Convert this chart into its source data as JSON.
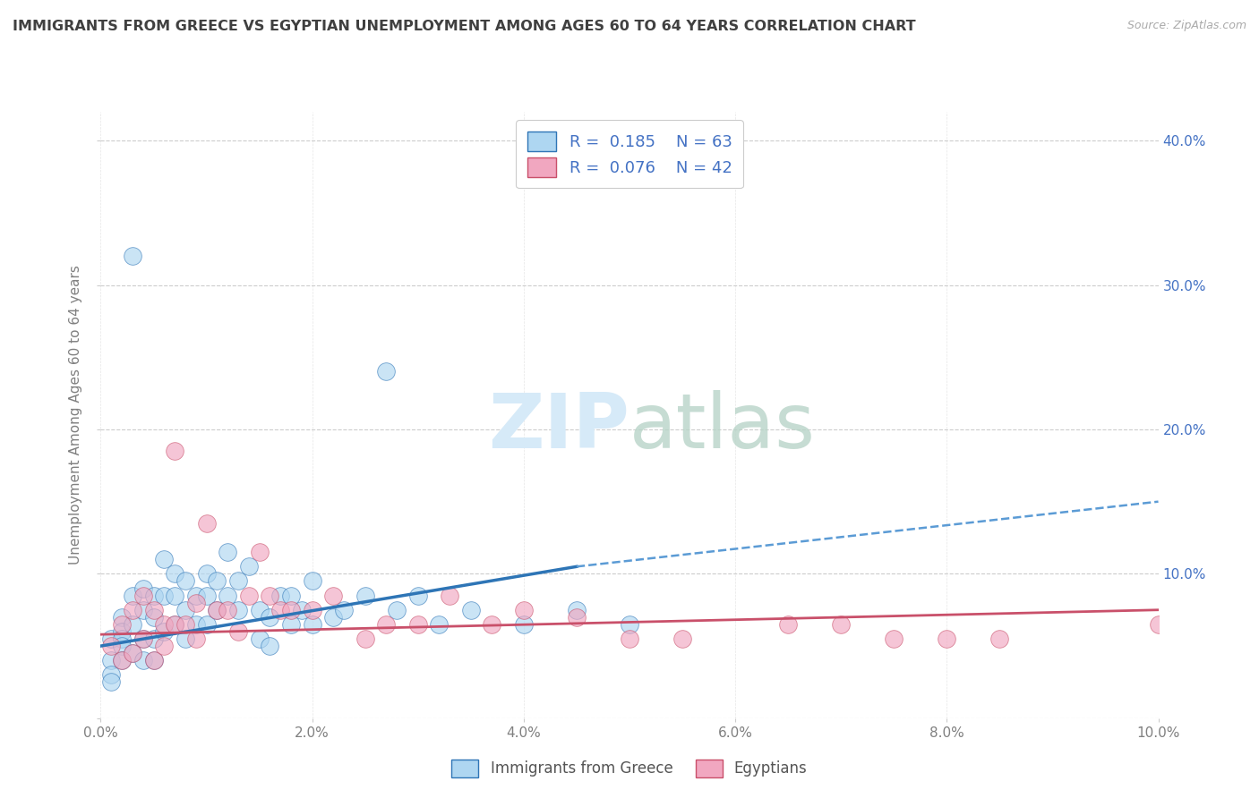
{
  "title": "IMMIGRANTS FROM GREECE VS EGYPTIAN UNEMPLOYMENT AMONG AGES 60 TO 64 YEARS CORRELATION CHART",
  "source": "Source: ZipAtlas.com",
  "ylabel": "Unemployment Among Ages 60 to 64 years",
  "xlim": [
    0.0,
    0.1
  ],
  "ylim": [
    0.0,
    0.42
  ],
  "xticks": [
    0.0,
    0.02,
    0.04,
    0.06,
    0.08,
    0.1
  ],
  "yticks": [
    0.0,
    0.1,
    0.2,
    0.3,
    0.4
  ],
  "xtick_labels": [
    "0.0%",
    "2.0%",
    "4.0%",
    "6.0%",
    "8.0%",
    "10.0%"
  ],
  "ytick_labels": [
    "",
    "10.0%",
    "20.0%",
    "30.0%",
    "40.0%"
  ],
  "legend1_R": "0.185",
  "legend1_N": "63",
  "legend2_R": "0.076",
  "legend2_N": "42",
  "color_blue": "#AED6F1",
  "color_pink": "#F1A7C0",
  "color_line_blue": "#2E75B6",
  "color_line_pink": "#C9506A",
  "color_line_blue_dash": "#5B9BD5",
  "watermark_color": "#D6EAF8",
  "background_color": "#FFFFFF",
  "grid_color": "#CCCCCC",
  "title_color": "#404040",
  "axis_label_color": "#808080",
  "ytick_color": "#4472C4",
  "xtick_color": "#808080",
  "source_color": "#AAAAAA",
  "legend_text_color": "#4472C4",
  "greece_x": [
    0.001,
    0.001,
    0.001,
    0.001,
    0.002,
    0.002,
    0.002,
    0.002,
    0.002,
    0.003,
    0.003,
    0.003,
    0.003,
    0.004,
    0.004,
    0.004,
    0.004,
    0.005,
    0.005,
    0.005,
    0.005,
    0.006,
    0.006,
    0.006,
    0.007,
    0.007,
    0.007,
    0.008,
    0.008,
    0.008,
    0.009,
    0.009,
    0.01,
    0.01,
    0.01,
    0.011,
    0.011,
    0.012,
    0.012,
    0.013,
    0.013,
    0.014,
    0.015,
    0.015,
    0.016,
    0.016,
    0.017,
    0.018,
    0.018,
    0.019,
    0.02,
    0.02,
    0.022,
    0.023,
    0.025,
    0.027,
    0.028,
    0.03,
    0.032,
    0.035,
    0.04,
    0.045,
    0.05
  ],
  "greece_y": [
    0.055,
    0.04,
    0.03,
    0.025,
    0.07,
    0.06,
    0.055,
    0.05,
    0.04,
    0.32,
    0.085,
    0.065,
    0.045,
    0.09,
    0.075,
    0.055,
    0.04,
    0.085,
    0.07,
    0.055,
    0.04,
    0.11,
    0.085,
    0.06,
    0.1,
    0.085,
    0.065,
    0.095,
    0.075,
    0.055,
    0.085,
    0.065,
    0.1,
    0.085,
    0.065,
    0.095,
    0.075,
    0.115,
    0.085,
    0.095,
    0.075,
    0.105,
    0.075,
    0.055,
    0.07,
    0.05,
    0.085,
    0.085,
    0.065,
    0.075,
    0.095,
    0.065,
    0.07,
    0.075,
    0.085,
    0.24,
    0.075,
    0.085,
    0.065,
    0.075,
    0.065,
    0.075,
    0.065
  ],
  "egypt_x": [
    0.001,
    0.002,
    0.002,
    0.003,
    0.003,
    0.004,
    0.004,
    0.005,
    0.005,
    0.006,
    0.006,
    0.007,
    0.007,
    0.008,
    0.009,
    0.009,
    0.01,
    0.011,
    0.012,
    0.013,
    0.014,
    0.015,
    0.016,
    0.017,
    0.018,
    0.02,
    0.022,
    0.025,
    0.027,
    0.03,
    0.033,
    0.037,
    0.04,
    0.045,
    0.05,
    0.055,
    0.065,
    0.07,
    0.075,
    0.08,
    0.085,
    0.1
  ],
  "egypt_y": [
    0.05,
    0.065,
    0.04,
    0.075,
    0.045,
    0.085,
    0.055,
    0.075,
    0.04,
    0.065,
    0.05,
    0.185,
    0.065,
    0.065,
    0.08,
    0.055,
    0.135,
    0.075,
    0.075,
    0.06,
    0.085,
    0.115,
    0.085,
    0.075,
    0.075,
    0.075,
    0.085,
    0.055,
    0.065,
    0.065,
    0.085,
    0.065,
    0.075,
    0.07,
    0.055,
    0.055,
    0.065,
    0.065,
    0.055,
    0.055,
    0.055,
    0.065
  ],
  "trend_blue_x0": 0.0,
  "trend_blue_y0": 0.05,
  "trend_blue_x1": 0.045,
  "trend_blue_y1": 0.105,
  "trend_blue_dash_x0": 0.045,
  "trend_blue_dash_y0": 0.105,
  "trend_blue_dash_x1": 0.1,
  "trend_blue_dash_y1": 0.15,
  "trend_pink_x0": 0.0,
  "trend_pink_y0": 0.058,
  "trend_pink_x1": 0.1,
  "trend_pink_y1": 0.075
}
